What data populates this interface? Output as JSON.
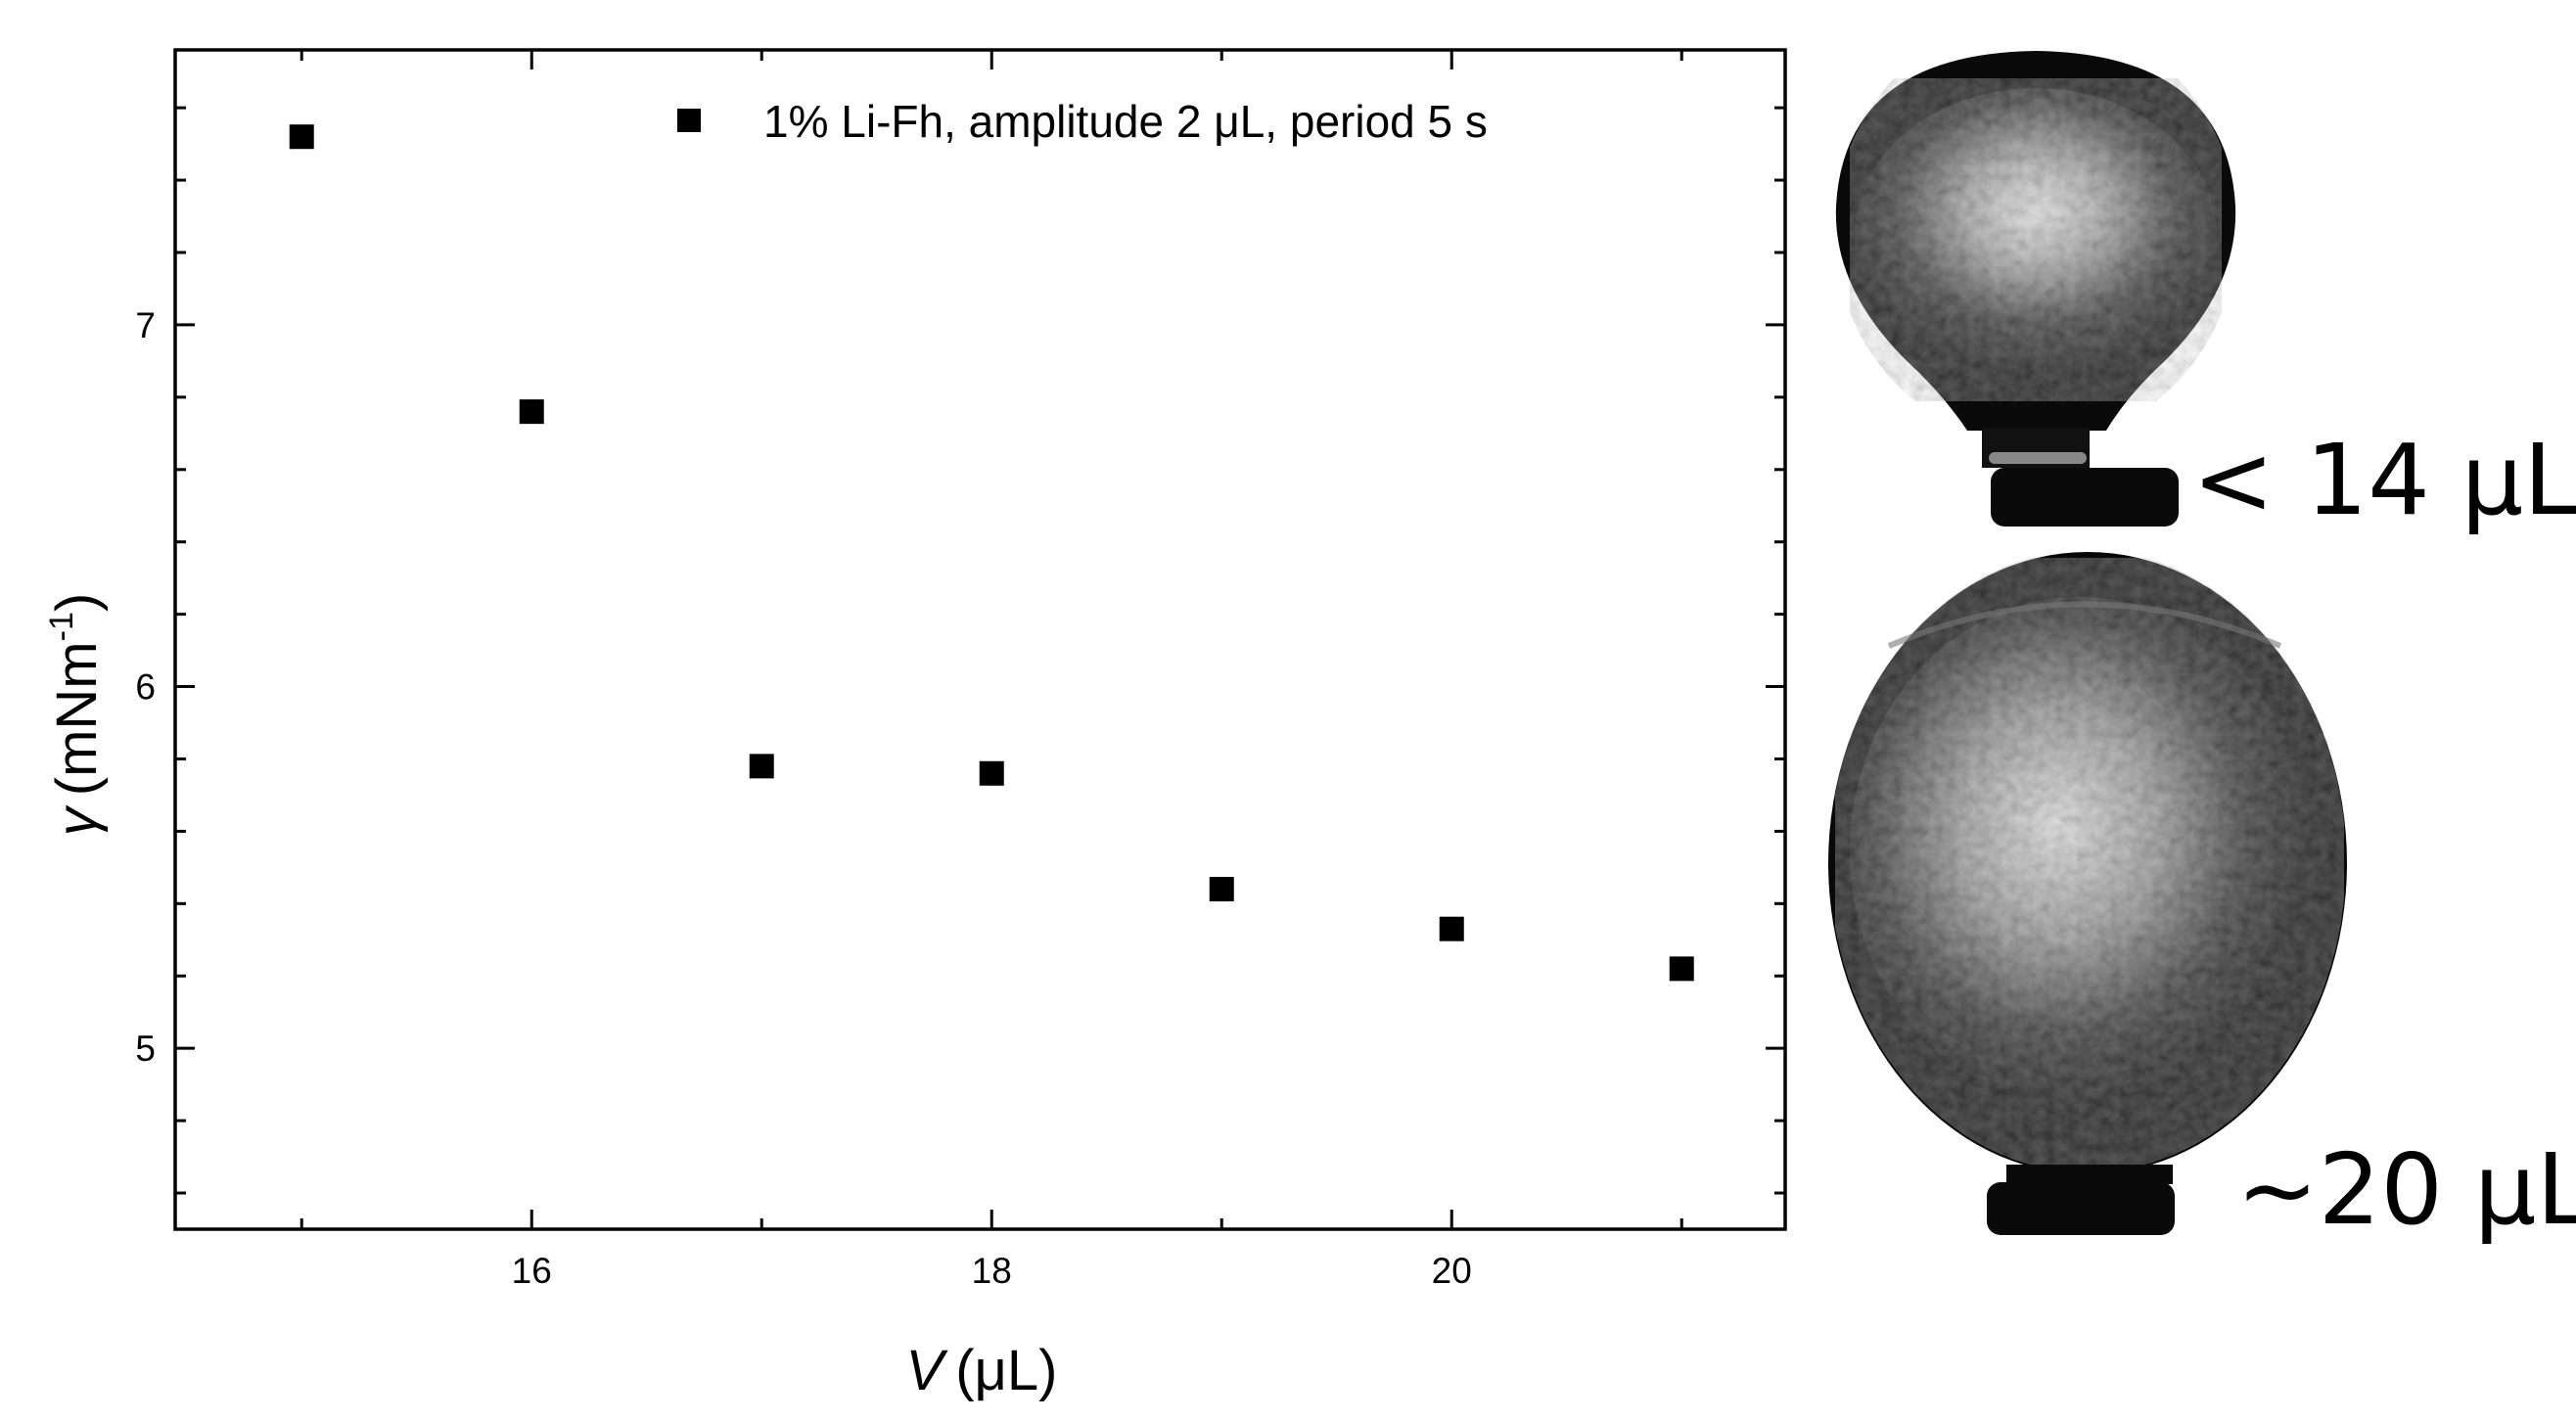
{
  "chart_data": {
    "type": "scatter",
    "xlabel_symbol": "V",
    "xlabel_unit": "(μL)",
    "ylabel_symbol": "γ",
    "ylabel_unit": "(mNm",
    "ylabel_sup": "-1",
    "ylabel_close": ")",
    "xlim": [
      14.45,
      21.45
    ],
    "ylim": [
      4.5,
      7.76
    ],
    "x_ticks": [
      16,
      18,
      20
    ],
    "y_ticks": [
      5,
      6,
      7
    ],
    "x_minor_step": 1,
    "y_minor_step": 0.2,
    "legend_position": "top-right",
    "series": [
      {
        "name": "1% Li-Fh, amplitude 2 μL, period 5 s",
        "marker": "square",
        "color": "#000000",
        "x": [
          15,
          16,
          17,
          18,
          19,
          20,
          21
        ],
        "y": [
          7.52,
          6.76,
          5.78,
          5.76,
          5.44,
          5.33,
          5.22
        ]
      }
    ]
  },
  "droplets": {
    "small_label": "< 14 μL",
    "large_label": "~20 μL"
  }
}
